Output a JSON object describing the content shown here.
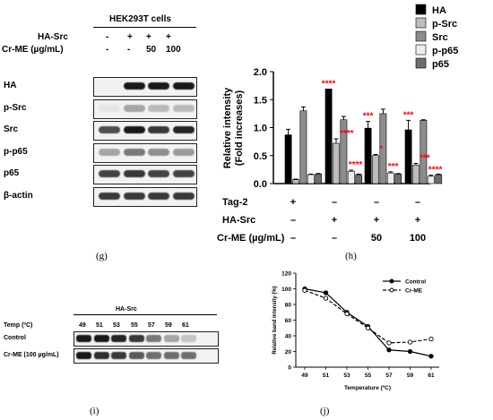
{
  "panel_g": {
    "cells_title": "HEK293T cells",
    "row_labels": [
      "HA-Src",
      "Cr-ME (µg/mL)"
    ],
    "treatments": [
      [
        "-",
        "+",
        "+",
        "+"
      ],
      [
        "-",
        "-",
        "50",
        "100"
      ]
    ],
    "blots": [
      {
        "label": "HA",
        "levels": [
          0.0,
          1.0,
          1.0,
          1.0
        ]
      },
      {
        "label": "p-Src",
        "levels": [
          0.05,
          0.35,
          0.25,
          0.25
        ]
      },
      {
        "label": "Src",
        "levels": [
          0.75,
          1.0,
          0.85,
          0.95
        ]
      },
      {
        "label": "p-p65",
        "levels": [
          0.35,
          0.55,
          0.45,
          0.4
        ]
      },
      {
        "label": "p65",
        "levels": [
          0.8,
          0.85,
          0.8,
          0.8
        ]
      },
      {
        "label": "β-actin",
        "levels": [
          0.85,
          0.85,
          0.85,
          0.85
        ]
      }
    ],
    "caption": "(g)"
  },
  "panel_h": {
    "caption": "(h)",
    "treatment_rows": [
      {
        "label": "Tag-2",
        "values": [
          "+",
          "–",
          "–",
          "–"
        ]
      },
      {
        "label": "HA-Src",
        "values": [
          "–",
          "+",
          "+",
          "+"
        ]
      },
      {
        "label": "Cr-ME (µg/mL)",
        "values": [
          "–",
          "–",
          "50",
          "100"
        ]
      }
    ],
    "chart_data": {
      "type": "bar",
      "ylabel": "Relative intensity\n(Fold increases)",
      "ylim": [
        0,
        2.0
      ],
      "yticks": [
        "0.0",
        "0.5",
        "1.0",
        "1.5",
        "2.0"
      ],
      "categories": [
        "1",
        "2",
        "3",
        "4"
      ],
      "series": [
        {
          "name": "HA",
          "color": "#000000",
          "values": [
            0.87,
            1.69,
            0.99,
            0.96
          ],
          "errors": [
            0.1,
            0.0,
            0.12,
            0.17
          ]
        },
        {
          "name": "p-Src",
          "color": "#bdbdbd",
          "values": [
            0.07,
            0.72,
            0.5,
            0.33
          ],
          "errors": [
            0.01,
            0.08,
            0.02,
            0.03
          ]
        },
        {
          "name": "Src",
          "color": "#8c8c8c",
          "values": [
            1.3,
            1.14,
            1.25,
            1.13
          ],
          "errors": [
            0.07,
            0.06,
            0.08,
            0.01
          ]
        },
        {
          "name": "p-p65",
          "color": "#ededed",
          "values": [
            0.16,
            0.22,
            0.19,
            0.13
          ],
          "errors": [
            0.01,
            0.02,
            0.02,
            0.02
          ]
        },
        {
          "name": "p65",
          "color": "#6e6e6e",
          "values": [
            0.17,
            0.16,
            0.17,
            0.16
          ],
          "errors": [
            0.01,
            0.01,
            0.01,
            0.01
          ]
        }
      ],
      "annotations": [
        {
          "category": 1,
          "series": 0,
          "text": "****"
        },
        {
          "category": 1,
          "series": 1,
          "text": "****"
        },
        {
          "category": 1,
          "series": 3,
          "text": "****"
        },
        {
          "category": 2,
          "series": 0,
          "text": "***"
        },
        {
          "category": 2,
          "series": 1,
          "text": "*"
        },
        {
          "category": 2,
          "series": 3,
          "text": "***"
        },
        {
          "category": 3,
          "series": 0,
          "text": "***"
        },
        {
          "category": 3,
          "series": 1,
          "text": "***"
        },
        {
          "category": 3,
          "series": 3,
          "text": "****"
        }
      ],
      "annotation_color": "#ff0000",
      "legend": "top-right"
    }
  },
  "panel_i": {
    "caption": "(i)",
    "header": "HA-Src",
    "temp_label": "Temp (ºC)",
    "temps": [
      "49",
      "51",
      "53",
      "55",
      "57",
      "59",
      "61"
    ],
    "rows": [
      {
        "label": "Control",
        "levels": [
          1.0,
          1.0,
          0.95,
          0.85,
          0.55,
          0.35,
          0.2
        ]
      },
      {
        "label": "Cr-ME (100 µg/mL)",
        "levels": [
          1.0,
          0.9,
          0.85,
          0.7,
          0.6,
          0.6,
          0.6
        ]
      }
    ]
  },
  "panel_j": {
    "caption": "(j)",
    "chart_data": {
      "type": "line",
      "xlabel": "Temperature (ºC)",
      "ylabel": "Relative band intensity (%)",
      "x": [
        49,
        51,
        53,
        55,
        57,
        59,
        61
      ],
      "xticks": [
        "49",
        "51",
        "53",
        "55",
        "57",
        "59",
        "61"
      ],
      "ylim": [
        0,
        120
      ],
      "yticks": [
        "0",
        "20",
        "40",
        "60",
        "80",
        "100",
        "120"
      ],
      "series": [
        {
          "name": "Control",
          "style": "solid",
          "marker": "filled-circle",
          "values": [
            100,
            95,
            70,
            52,
            22,
            20,
            14
          ],
          "errors": [
            3,
            0,
            2,
            0,
            0,
            0,
            0
          ]
        },
        {
          "name": "Cr-ME",
          "style": "dashed",
          "marker": "open-circle",
          "values": [
            98,
            88,
            68,
            50,
            31,
            32,
            36
          ],
          "errors": [
            2,
            0,
            0,
            0,
            0,
            0,
            0
          ]
        }
      ],
      "legend": "top-right"
    }
  }
}
